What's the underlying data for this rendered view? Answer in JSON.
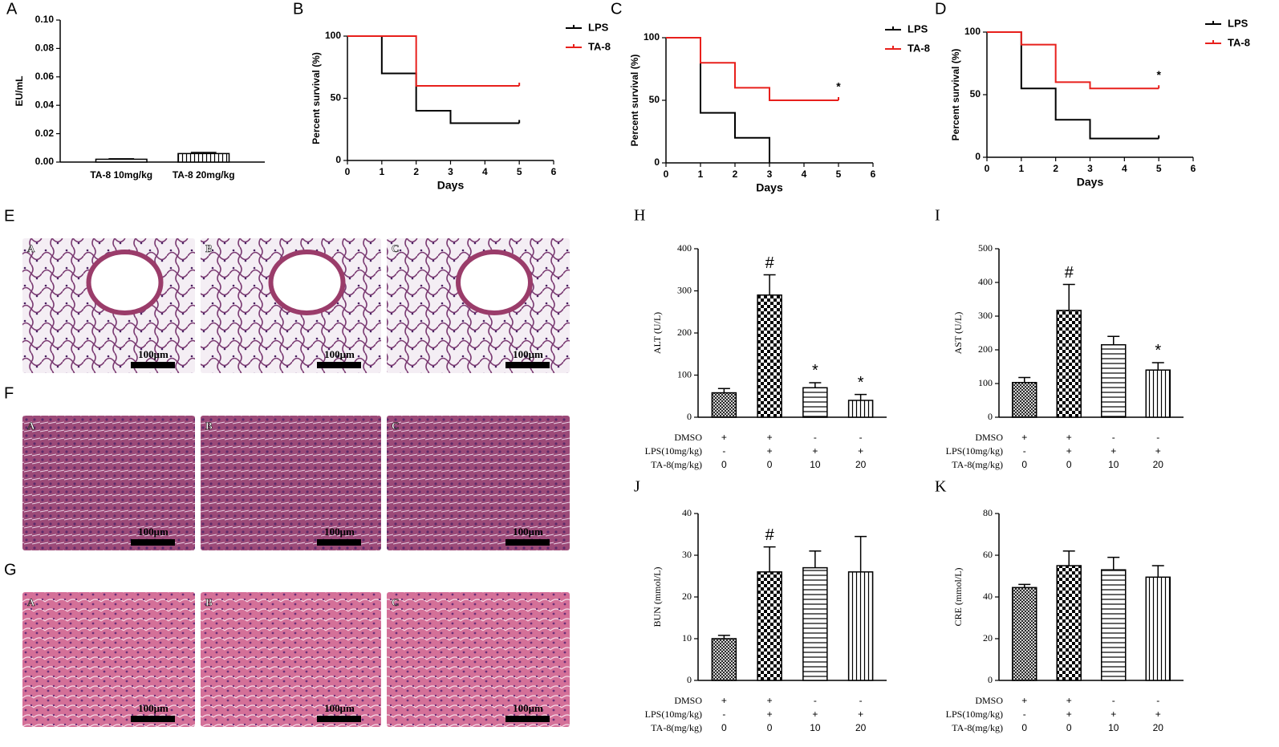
{
  "chart_data": [
    {
      "type": "bar",
      "panel": "A",
      "ylabel": "EU/mL",
      "categories": [
        "TA-8 10mg/kg",
        "TA-8 20mg/kg"
      ],
      "values": [
        0.002,
        0.006
      ],
      "errors": [
        0.0003,
        0.0008
      ],
      "patterns": [
        "none",
        "vlines"
      ],
      "ylim": [
        0,
        0.1
      ],
      "yticks": [
        {
          "value": 0,
          "label": "0.00"
        },
        {
          "value": 0.02,
          "label": "0.02"
        },
        {
          "value": 0.04,
          "label": "0.04"
        },
        {
          "value": 0.06,
          "label": "0.06"
        },
        {
          "value": 0.08,
          "label": "0.08"
        },
        {
          "value": 0.1,
          "label": "0.10"
        }
      ]
    },
    {
      "type": "step",
      "panel": "B",
      "xlabel": "Days",
      "ylabel": "Percent survival (%)",
      "x": [
        0,
        1,
        2,
        3,
        5
      ],
      "series": [
        {
          "name": "LPS",
          "color": "#000000",
          "values": [
            100,
            70,
            40,
            30,
            30
          ]
        },
        {
          "name": "TA-8",
          "color": "#e8201c",
          "values": [
            100,
            100,
            60,
            60,
            60
          ]
        }
      ],
      "xlim": [
        0,
        6
      ],
      "xticks": [
        0,
        1,
        2,
        3,
        4,
        5,
        6
      ],
      "ylim": [
        0,
        100
      ],
      "yticks": [
        0,
        50,
        100
      ]
    },
    {
      "type": "step",
      "panel": "C",
      "xlabel": "Days",
      "ylabel": "Percent survival (%)",
      "annotation": "*",
      "x": [
        0,
        1,
        2,
        3,
        5
      ],
      "series": [
        {
          "name": "LPS",
          "color": "#000000",
          "values": [
            100,
            40,
            20,
            0,
            null
          ]
        },
        {
          "name": "TA-8",
          "color": "#e8201c",
          "values": [
            100,
            80,
            60,
            50,
            50
          ]
        }
      ],
      "xlim": [
        0,
        6
      ],
      "xticks": [
        0,
        1,
        2,
        3,
        4,
        5,
        6
      ],
      "ylim": [
        0,
        100
      ],
      "yticks": [
        0,
        50,
        100
      ]
    },
    {
      "type": "step",
      "panel": "D",
      "xlabel": "Days",
      "ylabel": "Percent survival (%)",
      "annotation": "*",
      "x": [
        0,
        1,
        2,
        3,
        5
      ],
      "series": [
        {
          "name": "LPS",
          "color": "#000000",
          "values": [
            100,
            55,
            30,
            15,
            15
          ]
        },
        {
          "name": "TA-8",
          "color": "#e8201c",
          "values": [
            100,
            90,
            60,
            55,
            55
          ]
        }
      ],
      "xlim": [
        0,
        6
      ],
      "xticks": [
        0,
        1,
        2,
        3,
        4,
        5,
        6
      ],
      "ylim": [
        0,
        100
      ],
      "yticks": [
        0,
        50,
        100
      ]
    },
    {
      "type": "bar",
      "panel": "H",
      "ylabel": "ALT (U/L)",
      "values": [
        58,
        290,
        70,
        40
      ],
      "errors": [
        10,
        48,
        12,
        14
      ],
      "markers": [
        null,
        "#",
        "*",
        "*"
      ],
      "patterns": [
        "fine",
        "checker",
        "hlines",
        "vlines"
      ],
      "conditions": [
        {
          "label": "DMSO",
          "values": [
            "+",
            "+",
            "-",
            "-"
          ]
        },
        {
          "label": "LPS(10mg/kg)",
          "values": [
            "-",
            "+",
            "+",
            "+"
          ]
        },
        {
          "label": "TA-8(mg/kg)",
          "values": [
            "0",
            "0",
            "10",
            "20"
          ]
        }
      ],
      "ylim": [
        0,
        400
      ],
      "yticks": [
        0,
        100,
        200,
        300,
        400
      ]
    },
    {
      "type": "bar",
      "panel": "I",
      "ylabel": "AST (U/L)",
      "values": [
        103,
        317,
        215,
        140
      ],
      "errors": [
        15,
        77,
        25,
        22
      ],
      "markers": [
        null,
        "#",
        null,
        "*"
      ],
      "patterns": [
        "fine",
        "checker",
        "hlines",
        "vlines"
      ],
      "conditions": [
        {
          "label": "DMSO",
          "values": [
            "+",
            "+",
            "-",
            "-"
          ]
        },
        {
          "label": "LPS(10mg/kg)",
          "values": [
            "-",
            "+",
            "+",
            "+"
          ]
        },
        {
          "label": "TA-8(mg/kg)",
          "values": [
            "0",
            "0",
            "10",
            "20"
          ]
        }
      ],
      "ylim": [
        0,
        500
      ],
      "yticks": [
        0,
        100,
        200,
        300,
        400,
        500
      ]
    },
    {
      "type": "bar",
      "panel": "J",
      "ylabel": "BUN (mmol/L)",
      "values": [
        10,
        26,
        27,
        26
      ],
      "errors": [
        0.8,
        6,
        4,
        8.5
      ],
      "markers": [
        null,
        "#",
        null,
        null
      ],
      "patterns": [
        "fine",
        "checker",
        "hlines",
        "vlines"
      ],
      "conditions": [
        {
          "label": "DMSO",
          "values": [
            "+",
            "+",
            "-",
            "-"
          ]
        },
        {
          "label": "LPS(10mg/kg)",
          "values": [
            "-",
            "+",
            "+",
            "+"
          ]
        },
        {
          "label": "TA-8(mg/kg)",
          "values": [
            "0",
            "0",
            "10",
            "20"
          ]
        }
      ],
      "ylim": [
        0,
        40
      ],
      "yticks": [
        0,
        10,
        20,
        30,
        40
      ]
    },
    {
      "type": "bar",
      "panel": "K",
      "ylabel": "CRE (mmol/L)",
      "values": [
        44.5,
        55,
        53,
        49.5
      ],
      "errors": [
        1.5,
        7,
        6,
        5.5
      ],
      "patterns": [
        "fine",
        "checker",
        "hlines",
        "vlines"
      ],
      "conditions": [
        {
          "label": "DMSO",
          "values": [
            "+",
            "+",
            "-",
            "-"
          ]
        },
        {
          "label": "LPS(10mg/kg)",
          "values": [
            "-",
            "+",
            "+",
            "+"
          ]
        },
        {
          "label": "TA-8(mg/kg)",
          "values": [
            "0",
            "0",
            "10",
            "20"
          ]
        }
      ],
      "ylim": [
        0,
        80
      ],
      "yticks": [
        0,
        20,
        40,
        60,
        80
      ]
    }
  ],
  "histology": [
    {
      "panel": "E",
      "images": [
        {
          "label": "A",
          "scale": "100μm"
        },
        {
          "label": "B",
          "scale": "100μm"
        },
        {
          "label": "C",
          "scale": "100μm"
        }
      ]
    },
    {
      "panel": "F",
      "images": [
        {
          "label": "A",
          "scale": "100μm"
        },
        {
          "label": "B",
          "scale": "100μm"
        },
        {
          "label": "C",
          "scale": "100μm"
        }
      ]
    },
    {
      "panel": "G",
      "images": [
        {
          "label": "A",
          "scale": "100μm"
        },
        {
          "label": "B",
          "scale": "100μm"
        },
        {
          "label": "C",
          "scale": "100μm"
        }
      ]
    }
  ]
}
